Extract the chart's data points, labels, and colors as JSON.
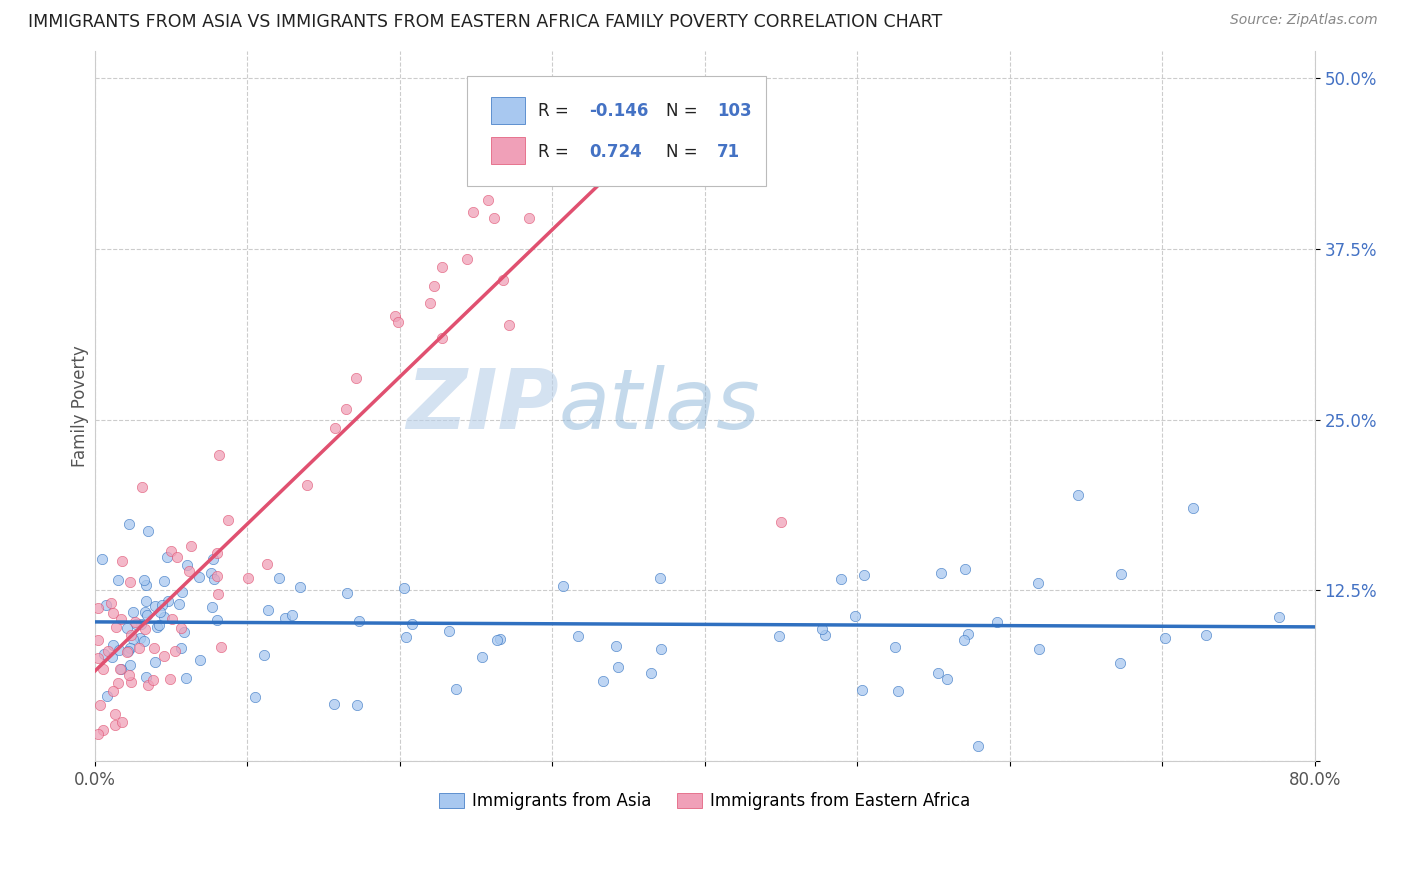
{
  "title": "IMMIGRANTS FROM ASIA VS IMMIGRANTS FROM EASTERN AFRICA FAMILY POVERTY CORRELATION CHART",
  "source": "Source: ZipAtlas.com",
  "ylabel": "Family Poverty",
  "xlim": [
    0.0,
    0.8
  ],
  "ylim": [
    0.0,
    0.52
  ],
  "color_asia": "#a8c8f0",
  "color_eastern_africa": "#f0a0b8",
  "color_asia_line": "#3070c0",
  "color_eastern_africa_line": "#e05070",
  "background_color": "#ffffff",
  "grid_color": "#cccccc",
  "watermark_zip": "ZIP",
  "watermark_atlas": "atlas",
  "label_asia": "Immigrants from Asia",
  "label_africa": "Immigrants from Eastern Africa",
  "legend_r1": "-0.146",
  "legend_n1": "103",
  "legend_r2": "0.724",
  "legend_n2": "71",
  "ytick_color": "#4472c4"
}
